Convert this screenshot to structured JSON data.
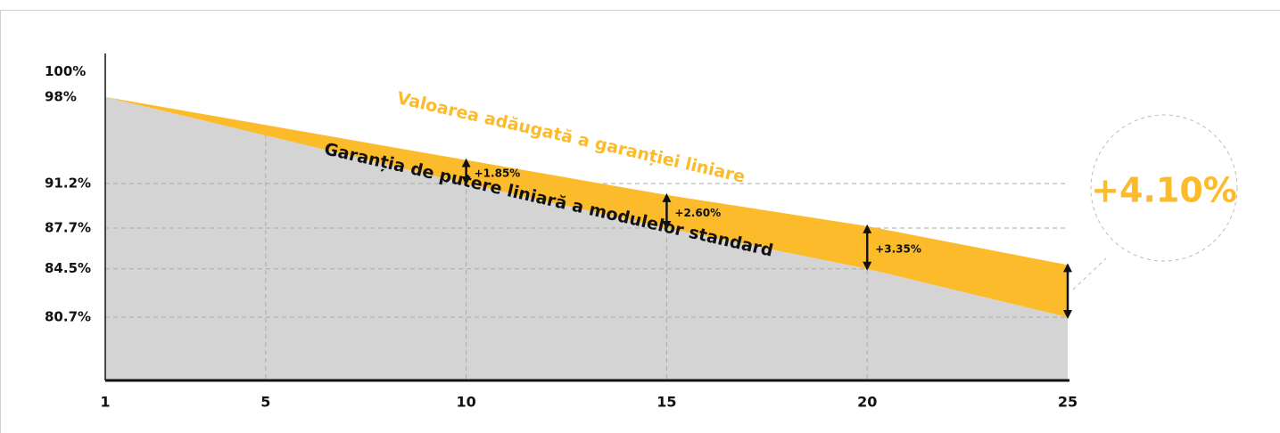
{
  "chart_data": {
    "type": "area-band",
    "x": [
      1,
      10,
      15,
      20,
      25
    ],
    "series": [
      {
        "name": "Garanția de putere liniară a modulelor standard",
        "color": "#d4d4d4",
        "label_color": "#111111",
        "values": [
          98,
          91.2,
          87.7,
          84.5,
          80.7
        ]
      },
      {
        "name": "Valoarea adăugată a garanției liniare",
        "color": "#fbbb2b",
        "label_color": "#fbbb2b",
        "values": [
          98,
          93.05,
          90.3,
          87.85,
          84.8
        ]
      }
    ],
    "xlim": [
      1,
      25
    ],
    "xticks": [
      1,
      5,
      10,
      15,
      20,
      25
    ],
    "ylim": [
      75.7,
      100
    ],
    "yticks": [
      {
        "value": 100,
        "label": "100%"
      },
      {
        "value": 98,
        "label": "98%"
      },
      {
        "value": 91.2,
        "label": "91.2%"
      },
      {
        "value": 87.7,
        "label": "87.7%"
      },
      {
        "value": 84.5,
        "label": "84.5%"
      },
      {
        "value": 80.7,
        "label": "80.7%"
      }
    ],
    "grid": true,
    "annotations": [
      {
        "x": 10,
        "label": "+1.85%"
      },
      {
        "x": 15,
        "label": "+2.60%"
      },
      {
        "x": 20,
        "label": "+3.35%"
      },
      {
        "x": 25,
        "label": "+4.10%"
      }
    ]
  }
}
